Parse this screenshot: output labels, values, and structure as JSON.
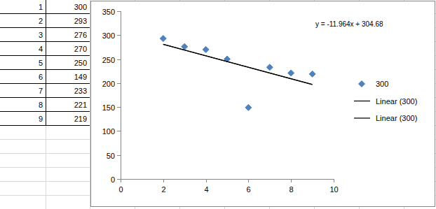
{
  "table": {
    "rows": [
      [
        1,
        300
      ],
      [
        2,
        293
      ],
      [
        3,
        276
      ],
      [
        4,
        270
      ],
      [
        5,
        250
      ],
      [
        6,
        149
      ],
      [
        7,
        233
      ],
      [
        8,
        221
      ],
      [
        9,
        219
      ]
    ]
  },
  "chart_data": {
    "type": "scatter",
    "annotations": [
      "y = -11.964x + 304.68"
    ],
    "series": [
      {
        "name": "300",
        "type": "scatter",
        "marker": "diamond",
        "color": "#4f81bd",
        "x": [
          2,
          3,
          4,
          5,
          6,
          7,
          8,
          9
        ],
        "values": [
          293,
          276,
          270,
          250,
          149,
          233,
          221,
          219
        ]
      },
      {
        "name": "Linear (300)",
        "type": "line",
        "line_style": "solid",
        "color": "#000000",
        "x": [
          2,
          9
        ],
        "values": [
          281,
          197
        ]
      },
      {
        "name": "Linear (300)",
        "type": "line",
        "line_style": "solid",
        "color": "#000000",
        "x": [
          2,
          9
        ],
        "values": [
          281,
          197
        ]
      }
    ],
    "xlim": [
      0,
      10
    ],
    "xticks": [
      0,
      2,
      4,
      6,
      8,
      10
    ],
    "ylim": [
      0,
      350
    ],
    "yticks": [
      0,
      50,
      100,
      150,
      200,
      250,
      300,
      350
    ],
    "grid": false,
    "legend": "right"
  }
}
